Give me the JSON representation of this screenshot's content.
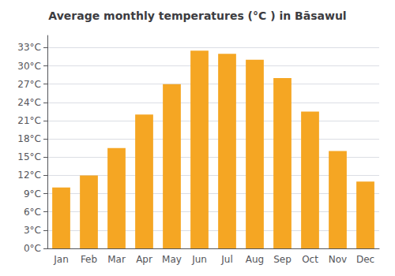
{
  "chart_data": {
    "type": "bar",
    "title": "Average monthly temperatures (°C ) in Bāsawul",
    "categories": [
      "Jan",
      "Feb",
      "Mar",
      "Apr",
      "May",
      "Jun",
      "Jul",
      "Aug",
      "Sep",
      "Oct",
      "Nov",
      "Dec"
    ],
    "values": [
      10,
      12,
      16.5,
      22,
      27,
      32.5,
      32,
      31,
      28,
      22.5,
      16,
      11
    ],
    "color": "#F5A623",
    "ylim": [
      0,
      35
    ],
    "yticks": [
      {
        "value": 0,
        "label": "0°C"
      },
      {
        "value": 3,
        "label": "3°C"
      },
      {
        "value": 6,
        "label": "6°C"
      },
      {
        "value": 9,
        "label": "9°C"
      },
      {
        "value": 12,
        "label": "12°C"
      },
      {
        "value": 15,
        "label": "15°C"
      },
      {
        "value": 18,
        "label": "18°C"
      },
      {
        "value": 21,
        "label": "21°C"
      },
      {
        "value": 24,
        "label": "24°C"
      },
      {
        "value": 27,
        "label": "27°C"
      },
      {
        "value": 30,
        "label": "30°C"
      },
      {
        "value": 33,
        "label": "33°C"
      }
    ],
    "grid": true
  }
}
